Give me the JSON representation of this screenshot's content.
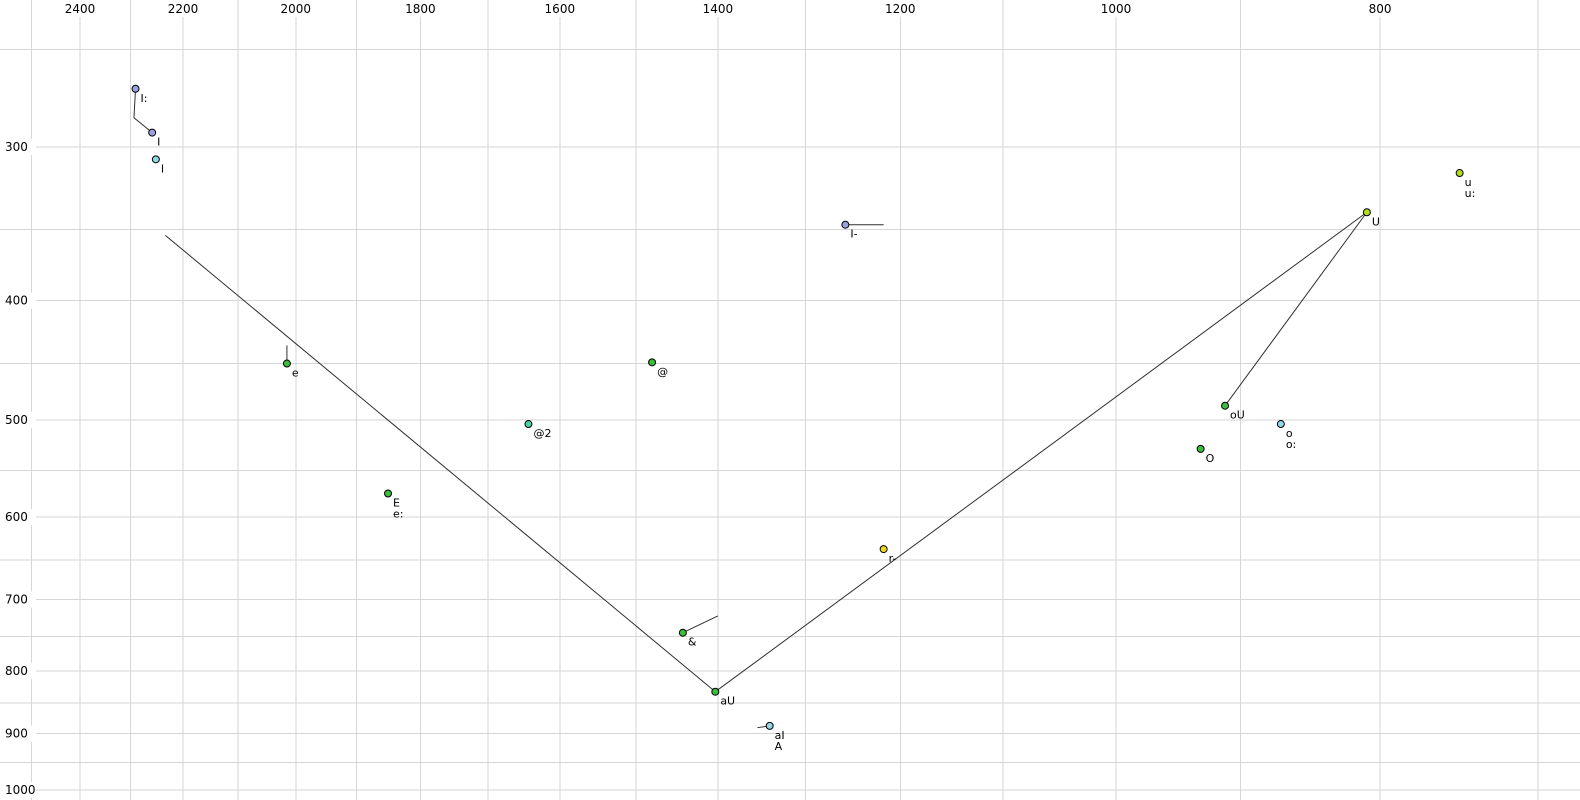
{
  "chart_data": {
    "type": "scatter",
    "description": "Vowel formant plot: F2 (Hz) on horizontal axis decreasing to the right, F1 (Hz) on vertical axis increasing downward, both log-scaled, light gray grid",
    "x_axis": {
      "unit": "Hz",
      "scale": "log",
      "reversed": true,
      "ticks": [
        2400,
        2200,
        2000,
        1800,
        1600,
        1400,
        1200,
        1000,
        800
      ],
      "minor_gridline_step": 100,
      "visible_range": [
        2570,
        675
      ]
    },
    "y_axis": {
      "unit": "Hz",
      "scale": "log",
      "downward": true,
      "ticks": [
        300,
        400,
        500,
        600,
        700,
        800,
        900,
        1000
      ],
      "minor_gridline_step": 50,
      "visible_range": [
        228,
        1020
      ]
    },
    "points": [
      {
        "labels": [
          "I:"
        ],
        "f2": 2290,
        "f1": 269,
        "color": "#9aa0e0",
        "tail": [
          [
            2293,
            284
          ],
          [
            2258,
            292
          ]
        ]
      },
      {
        "labels": [
          "I"
        ],
        "f2": 2258,
        "f1": 292,
        "color": "#9aa0e0"
      },
      {
        "labels": [
          "I"
        ],
        "f2": 2251,
        "f1": 307,
        "color": "#92d6e8"
      },
      {
        "labels": [
          "u",
          "u:"
        ],
        "f2": 748,
        "f1": 315,
        "color": "#b2dc20"
      },
      {
        "labels": [
          "U"
        ],
        "f2": 809,
        "f1": 339,
        "color": "#b2dc20"
      },
      {
        "labels": [
          "I-"
        ],
        "f2": 1257,
        "f1": 347,
        "color": "#9aa0e0",
        "tail": [
          [
            1217,
            347
          ]
        ]
      },
      {
        "labels": [
          "e"
        ],
        "f2": 2015,
        "f1": 450,
        "color": "#3dbb3d",
        "tail": [
          [
            2015,
            435
          ]
        ]
      },
      {
        "labels": [
          "@"
        ],
        "f2": 1480,
        "f1": 449,
        "color": "#3dbb3d"
      },
      {
        "labels": [
          "@2"
        ],
        "f2": 1643,
        "f1": 504,
        "color": "#4ad1a1"
      },
      {
        "labels": [
          "E",
          "e:"
        ],
        "f2": 1850,
        "f1": 574,
        "color": "#3dbb3d"
      },
      {
        "labels": [
          "oU"
        ],
        "f2": 912,
        "f1": 487,
        "color": "#3dbb3d"
      },
      {
        "labels": [
          "o",
          "o:"
        ],
        "f2": 870,
        "f1": 504,
        "color": "#92d6e8"
      },
      {
        "labels": [
          "O"
        ],
        "f2": 931,
        "f1": 528,
        "color": "#3dbb3d"
      },
      {
        "labels": [
          "r-"
        ],
        "f2": 1217,
        "f1": 637,
        "color": "#ecd820"
      },
      {
        "labels": [
          "&"
        ],
        "f2": 1442,
        "f1": 745,
        "color": "#3dbb3d",
        "tail": [
          [
            1400,
            722
          ]
        ]
      },
      {
        "labels": [
          "aU"
        ],
        "f2": 1403,
        "f1": 832,
        "color": "#3dbb3d"
      },
      {
        "labels": [
          "aI",
          "A"
        ],
        "f2": 1340,
        "f1": 887,
        "color": "#92d6e8",
        "tail": [
          [
            1354,
            890
          ]
        ]
      }
    ],
    "lines": [
      {
        "name": "front-edge",
        "points": [
          [
            2233,
            354
          ],
          [
            1403,
            832
          ]
        ]
      },
      {
        "name": "back-edge",
        "points": [
          [
            1403,
            832
          ],
          [
            809,
            339
          ]
        ]
      },
      {
        "name": "oU-to-U",
        "points": [
          [
            912,
            487
          ],
          [
            809,
            339
          ]
        ]
      }
    ]
  },
  "style": {
    "background": "#ffffff",
    "grid_color": "#d6d6d6",
    "line_color": "#2f2f2f",
    "point_outline": "#000000",
    "text_color": "#000000"
  }
}
